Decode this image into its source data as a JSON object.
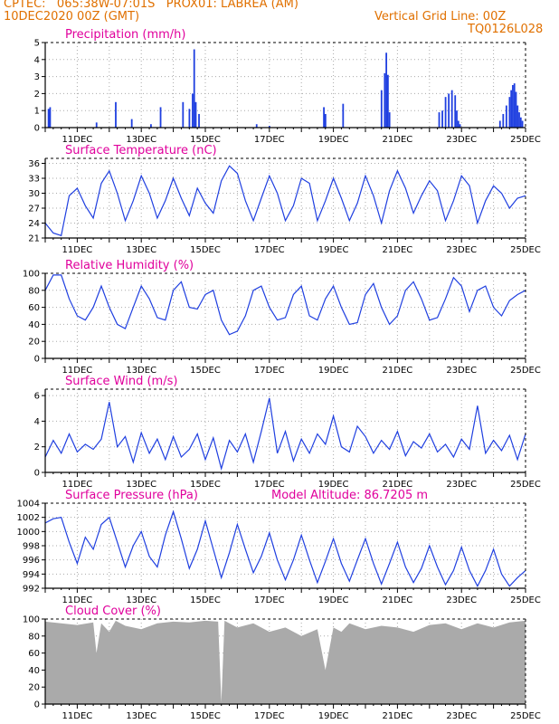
{
  "header": {
    "line1": "CPTEC:   065:38W-07:01S   PROX01: LABREA (AM)",
    "line2_left": "10DEC2020 00Z (GMT)",
    "line2_right": "Vertical Grid Line: 00Z",
    "line3_right": "TQ0126L028"
  },
  "colors": {
    "series": "#1f3fe0",
    "header": "#e07000",
    "title": "#e0009c",
    "cloud": "#aaaaaa"
  },
  "chart_data": [
    {
      "type": "bar",
      "title": "Precipitation (mm/h)",
      "xticks": [
        "11DEC",
        "13DEC",
        "15DEC",
        "17DEC",
        "19DEC",
        "21DEC",
        "23DEC",
        "25DEC"
      ],
      "ylim": [
        0,
        5
      ],
      "yticks": [
        0,
        1,
        2,
        3,
        4,
        5
      ],
      "x": [
        0.1,
        0.15,
        1.6,
        2.2,
        2.7,
        3.3,
        3.6,
        4.3,
        4.5,
        4.6,
        4.65,
        4.7,
        4.8,
        6.6,
        7.0,
        8.7,
        8.75,
        9.3,
        10.5,
        10.6,
        10.65,
        10.7,
        10.75,
        12.3,
        12.4,
        12.5,
        12.6,
        12.7,
        12.8,
        12.85,
        12.9,
        12.95,
        14.2,
        14.3,
        14.4,
        14.5,
        14.55,
        14.6,
        14.65,
        14.7,
        14.75,
        14.8,
        14.85,
        14.9
      ],
      "values": [
        1.1,
        1.2,
        0.3,
        1.5,
        0.5,
        0.2,
        1.2,
        1.5,
        1.1,
        2.0,
        4.6,
        1.5,
        0.8,
        0.2,
        0.1,
        1.2,
        0.8,
        1.4,
        2.2,
        3.2,
        4.4,
        3.1,
        0.9,
        0.9,
        1.0,
        1.8,
        2.0,
        2.2,
        1.9,
        1.0,
        0.4,
        0.2,
        0.4,
        0.8,
        1.3,
        1.8,
        2.2,
        2.5,
        2.6,
        2.1,
        1.3,
        0.9,
        0.6,
        0.4
      ]
    },
    {
      "type": "line",
      "title": "Surface Temperature (nC)",
      "xticks": [
        "11DEC",
        "13DEC",
        "15DEC",
        "17DEC",
        "19DEC",
        "21DEC",
        "23DEC",
        "25DEC"
      ],
      "ylim": [
        21,
        37
      ],
      "yticks": [
        21,
        24,
        27,
        30,
        33,
        36
      ],
      "x": [
        0,
        0.25,
        0.5,
        0.75,
        1.0,
        1.25,
        1.5,
        1.75,
        2.0,
        2.25,
        2.5,
        2.75,
        3.0,
        3.25,
        3.5,
        3.75,
        4.0,
        4.25,
        4.5,
        4.75,
        5.0,
        5.25,
        5.5,
        5.75,
        6.0,
        6.25,
        6.5,
        6.75,
        7.0,
        7.25,
        7.5,
        7.75,
        8.0,
        8.25,
        8.5,
        8.75,
        9.0,
        9.25,
        9.5,
        9.75,
        10.0,
        10.25,
        10.5,
        10.75,
        11.0,
        11.25,
        11.5,
        11.75,
        12.0,
        12.25,
        12.5,
        12.75,
        13.0,
        13.25,
        13.5,
        13.75,
        14.0,
        14.25,
        14.5,
        14.75,
        15.0
      ],
      "values": [
        24.0,
        22.0,
        21.5,
        29.5,
        31.0,
        27.5,
        25.0,
        32.0,
        34.5,
        30.0,
        24.5,
        28.5,
        33.5,
        30.0,
        25.0,
        28.5,
        33.0,
        29.0,
        25.5,
        31.0,
        28.0,
        26.0,
        32.5,
        35.5,
        34.0,
        28.5,
        24.5,
        29.0,
        33.5,
        30.0,
        24.5,
        27.5,
        33.0,
        32.0,
        24.5,
        28.5,
        33.0,
        29.0,
        24.5,
        28.0,
        33.5,
        29.5,
        24.0,
        30.5,
        34.5,
        31.0,
        26.0,
        29.5,
        32.5,
        30.5,
        24.5,
        28.5,
        33.5,
        31.5,
        24.0,
        28.5,
        31.5,
        30.0,
        27.0,
        29.0,
        29.5
      ]
    },
    {
      "type": "line",
      "title": "Relative Humidity (%)",
      "xticks": [
        "11DEC",
        "13DEC",
        "15DEC",
        "17DEC",
        "19DEC",
        "21DEC",
        "23DEC",
        "25DEC"
      ],
      "ylim": [
        0,
        100
      ],
      "yticks": [
        0,
        20,
        40,
        60,
        80,
        100
      ],
      "x": [
        0,
        0.25,
        0.5,
        0.75,
        1.0,
        1.25,
        1.5,
        1.75,
        2.0,
        2.25,
        2.5,
        2.75,
        3.0,
        3.25,
        3.5,
        3.75,
        4.0,
        4.25,
        4.5,
        4.75,
        5.0,
        5.25,
        5.5,
        5.75,
        6.0,
        6.25,
        6.5,
        6.75,
        7.0,
        7.25,
        7.5,
        7.75,
        8.0,
        8.25,
        8.5,
        8.75,
        9.0,
        9.25,
        9.5,
        9.75,
        10.0,
        10.25,
        10.5,
        10.75,
        11.0,
        11.25,
        11.5,
        11.75,
        12.0,
        12.25,
        12.5,
        12.75,
        13.0,
        13.25,
        13.5,
        13.75,
        14.0,
        14.25,
        14.5,
        14.75,
        15.0
      ],
      "values": [
        80,
        98,
        98,
        70,
        50,
        45,
        60,
        85,
        60,
        40,
        35,
        60,
        85,
        70,
        48,
        45,
        80,
        90,
        60,
        58,
        75,
        80,
        45,
        28,
        32,
        50,
        80,
        85,
        60,
        45,
        48,
        75,
        85,
        50,
        45,
        70,
        85,
        60,
        40,
        42,
        75,
        88,
        60,
        40,
        50,
        80,
        90,
        70,
        45,
        48,
        70,
        95,
        85,
        55,
        80,
        85,
        60,
        50,
        68,
        75,
        80
      ]
    },
    {
      "type": "line",
      "title": "Surface Wind (m/s)",
      "xticks": [
        "11DEC",
        "13DEC",
        "15DEC",
        "17DEC",
        "19DEC",
        "21DEC",
        "23DEC",
        "25DEC"
      ],
      "ylim": [
        0,
        6.5
      ],
      "yticks": [
        0,
        2,
        4,
        6
      ],
      "x": [
        0,
        0.25,
        0.5,
        0.75,
        1.0,
        1.25,
        1.5,
        1.75,
        2.0,
        2.25,
        2.5,
        2.75,
        3.0,
        3.25,
        3.5,
        3.75,
        4.0,
        4.25,
        4.5,
        4.75,
        5.0,
        5.25,
        5.5,
        5.75,
        6.0,
        6.25,
        6.5,
        6.75,
        7.0,
        7.25,
        7.5,
        7.75,
        8.0,
        8.25,
        8.5,
        8.75,
        9.0,
        9.25,
        9.5,
        9.75,
        10.0,
        10.25,
        10.5,
        10.75,
        11.0,
        11.25,
        11.5,
        11.75,
        12.0,
        12.25,
        12.5,
        12.75,
        13.0,
        13.25,
        13.5,
        13.75,
        14.0,
        14.25,
        14.5,
        14.75,
        15.0
      ],
      "values": [
        1.2,
        2.5,
        1.5,
        3.0,
        1.6,
        2.2,
        1.8,
        2.6,
        5.5,
        2.0,
        2.8,
        0.8,
        3.1,
        1.5,
        2.6,
        1.0,
        2.8,
        1.2,
        1.8,
        3.0,
        1.0,
        2.7,
        0.3,
        2.5,
        1.6,
        3.0,
        0.8,
        3.2,
        5.8,
        1.5,
        3.2,
        0.9,
        2.6,
        1.5,
        3.0,
        2.2,
        4.4,
        2.0,
        1.6,
        3.6,
        2.8,
        1.5,
        2.5,
        1.8,
        3.2,
        1.3,
        2.4,
        1.9,
        3.0,
        1.6,
        2.2,
        1.2,
        2.6,
        1.8,
        5.2,
        1.5,
        2.5,
        1.7,
        2.9,
        1.0,
        3.0
      ]
    },
    {
      "type": "line",
      "title": "Surface Pressure (hPa)",
      "annotation": "Model Altitude: 86.7205 m",
      "xticks": [
        "11DEC",
        "13DEC",
        "15DEC",
        "17DEC",
        "19DEC",
        "21DEC",
        "23DEC",
        "25DEC"
      ],
      "ylim": [
        992,
        1004
      ],
      "yticks": [
        992,
        994,
        996,
        998,
        1000,
        1002,
        1004
      ],
      "x": [
        0,
        0.25,
        0.5,
        0.75,
        1.0,
        1.25,
        1.5,
        1.75,
        2.0,
        2.25,
        2.5,
        2.75,
        3.0,
        3.25,
        3.5,
        3.75,
        4.0,
        4.25,
        4.5,
        4.75,
        5.0,
        5.25,
        5.5,
        5.75,
        6.0,
        6.25,
        6.5,
        6.75,
        7.0,
        7.25,
        7.5,
        7.75,
        8.0,
        8.25,
        8.5,
        8.75,
        9.0,
        9.25,
        9.5,
        9.75,
        10.0,
        10.25,
        10.5,
        10.75,
        11.0,
        11.25,
        11.5,
        11.75,
        12.0,
        12.25,
        12.5,
        12.75,
        13.0,
        13.25,
        13.5,
        13.75,
        14.0,
        14.25,
        14.5,
        14.75,
        15.0
      ],
      "values": [
        1001.2,
        1001.8,
        1002.0,
        998.5,
        995.5,
        999.2,
        997.5,
        1001.0,
        1002.0,
        998.5,
        995.0,
        998.0,
        1000.0,
        996.5,
        995.0,
        999.5,
        1002.8,
        999.0,
        994.8,
        997.5,
        1001.5,
        997.5,
        993.5,
        997.0,
        1001.0,
        997.5,
        994.2,
        996.5,
        999.8,
        996.0,
        993.2,
        996.0,
        999.5,
        996.0,
        992.8,
        995.8,
        999.0,
        995.5,
        993.0,
        996.0,
        999.0,
        995.5,
        992.6,
        995.5,
        998.5,
        995.0,
        992.8,
        994.8,
        998.0,
        995.0,
        992.5,
        994.5,
        997.8,
        994.5,
        992.3,
        994.5,
        997.5,
        994.0,
        992.3,
        993.5,
        994.5
      ]
    },
    {
      "type": "area",
      "title": "Cloud Cover (%)",
      "xticks": [
        "11DEC",
        "13DEC",
        "15DEC",
        "17DEC",
        "19DEC",
        "21DEC",
        "23DEC",
        "25DEC"
      ],
      "ylim": [
        0,
        100
      ],
      "yticks": [
        0,
        20,
        40,
        60,
        80,
        100
      ],
      "x": [
        0,
        0.5,
        1.0,
        1.5,
        1.6,
        1.75,
        2.0,
        2.2,
        2.5,
        3.0,
        3.5,
        4.0,
        4.5,
        5.0,
        5.4,
        5.5,
        5.6,
        6.0,
        6.5,
        7.0,
        7.5,
        8.0,
        8.5,
        8.75,
        9.0,
        9.25,
        9.5,
        10.0,
        10.5,
        11.0,
        11.5,
        12.0,
        12.5,
        13.0,
        13.5,
        14.0,
        14.5,
        15.0
      ],
      "values": [
        97,
        95,
        93,
        96,
        60,
        95,
        85,
        98,
        92,
        88,
        95,
        97,
        96,
        98,
        97,
        2,
        98,
        90,
        95,
        85,
        90,
        80,
        88,
        40,
        90,
        85,
        95,
        88,
        92,
        90,
        85,
        93,
        95,
        88,
        95,
        90,
        96,
        98
      ]
    }
  ]
}
